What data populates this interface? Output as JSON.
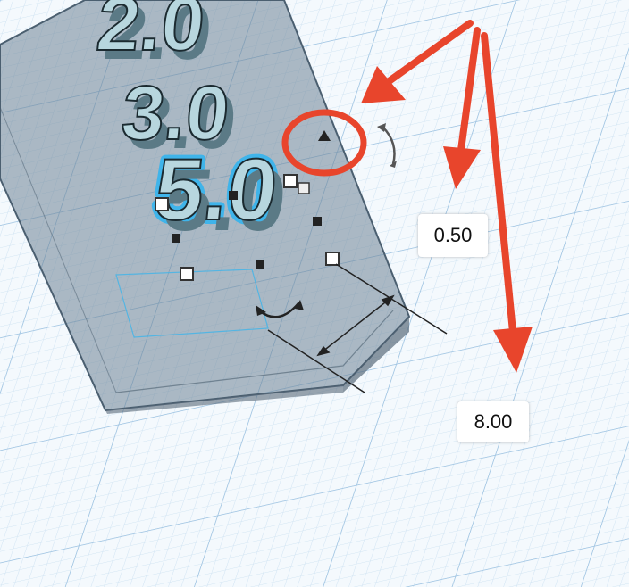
{
  "colors": {
    "grid_fine": "#cfe3f2",
    "grid_major": "#9fc4e2",
    "base_fill": "#6e8496",
    "text_fill": "#b7d6de",
    "selection_glow": "#3fb4ea",
    "annotation_red": "#e8452c"
  },
  "stacked_text": [
    "2.0",
    "3.0",
    "5.0"
  ],
  "dimension_labels": {
    "height": "0.50",
    "depth": "8.00"
  },
  "icons": {
    "rotate_handles": "rotate-arrow-icon",
    "resize_handles": "square-handle-icon"
  }
}
